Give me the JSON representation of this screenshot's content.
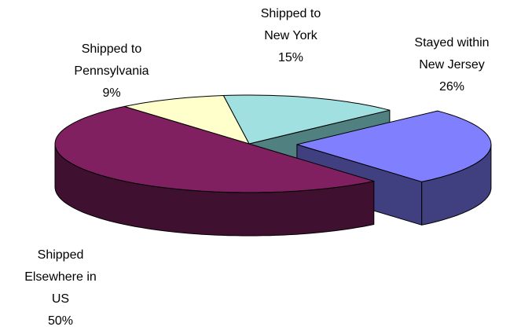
{
  "chart_data": {
    "type": "pie",
    "categories": [
      "Stayed within\nNew Jersey",
      "Shipped\nElsewhere in\nUS",
      "Shipped to\nPennsylvania",
      "Shipped to\nNew York"
    ],
    "values": [
      26,
      50,
      9,
      15
    ],
    "value_labels": [
      "26%",
      "50%",
      "9%",
      "15%"
    ],
    "colors": [
      "#8080ff",
      "#802060",
      "#ffffcc",
      "#a0e0e0"
    ],
    "side_colors": [
      "#404080",
      "#401030",
      "#b0b090",
      "#508080"
    ],
    "exploded": [
      0
    ]
  }
}
